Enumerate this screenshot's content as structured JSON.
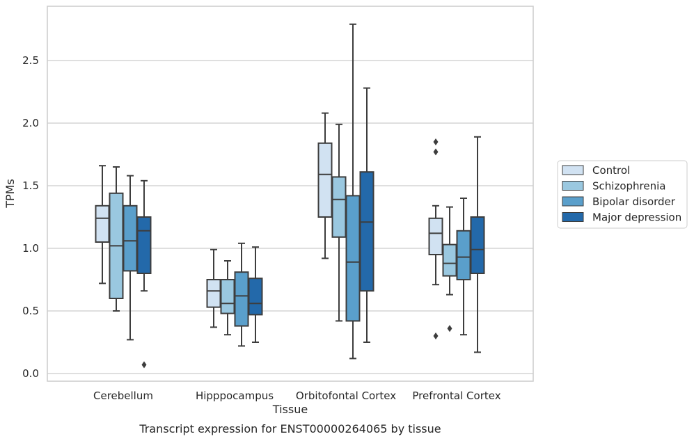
{
  "caption": "Transcript expression for ENST00000264065 by tissue",
  "chart_data": {
    "type": "box",
    "title": "",
    "xlabel": "Tissue",
    "ylabel": "TPMs",
    "ylim": [
      -0.05,
      2.88
    ],
    "yticks": [
      0.0,
      0.5,
      1.0,
      1.5,
      2.0,
      2.5
    ],
    "ytick_labels": [
      "0.0",
      "0.5",
      "1.0",
      "1.5",
      "2.0",
      "2.5"
    ],
    "grid": "horizontal",
    "legend_position": "right",
    "categories": [
      "Cerebellum",
      "Hipppocampus",
      "Orbitofontal Cortex",
      "Prefrontal Cortex"
    ],
    "series": [
      {
        "name": "Control",
        "color": "#d1e2f2",
        "boxes": [
          {
            "whislo": 0.72,
            "q1": 1.05,
            "med": 1.24,
            "q3": 1.34,
            "whishi": 1.66,
            "fliers": []
          },
          {
            "whislo": 0.37,
            "q1": 0.53,
            "med": 0.66,
            "q3": 0.75,
            "whishi": 0.99,
            "fliers": []
          },
          {
            "whislo": 0.92,
            "q1": 1.25,
            "med": 1.59,
            "q3": 1.84,
            "whishi": 2.08,
            "fliers": []
          },
          {
            "whislo": 0.71,
            "q1": 0.95,
            "med": 1.12,
            "q3": 1.24,
            "whishi": 1.34,
            "fliers": [
              1.85,
              1.77,
              0.3
            ]
          }
        ]
      },
      {
        "name": "Schizophrenia",
        "color": "#9ac8e0",
        "boxes": [
          {
            "whislo": 0.5,
            "q1": 0.6,
            "med": 1.02,
            "q3": 1.44,
            "whishi": 1.65,
            "fliers": []
          },
          {
            "whislo": 0.31,
            "q1": 0.48,
            "med": 0.56,
            "q3": 0.75,
            "whishi": 0.9,
            "fliers": []
          },
          {
            "whislo": 0.42,
            "q1": 1.09,
            "med": 1.39,
            "q3": 1.57,
            "whishi": 1.99,
            "fliers": []
          },
          {
            "whislo": 0.63,
            "q1": 0.78,
            "med": 0.88,
            "q3": 1.03,
            "whishi": 1.33,
            "fliers": [
              0.36
            ]
          }
        ]
      },
      {
        "name": "Bipolar disorder",
        "color": "#5a9fcb",
        "boxes": [
          {
            "whislo": 0.27,
            "q1": 0.82,
            "med": 1.06,
            "q3": 1.34,
            "whishi": 1.58,
            "fliers": []
          },
          {
            "whislo": 0.22,
            "q1": 0.38,
            "med": 0.62,
            "q3": 0.81,
            "whishi": 1.04,
            "fliers": []
          },
          {
            "whislo": 0.12,
            "q1": 0.42,
            "med": 0.89,
            "q3": 1.42,
            "whishi": 2.79,
            "fliers": []
          },
          {
            "whislo": 0.31,
            "q1": 0.75,
            "med": 0.93,
            "q3": 1.14,
            "whishi": 1.4,
            "fliers": []
          }
        ]
      },
      {
        "name": "Major depression",
        "color": "#2369aa",
        "boxes": [
          {
            "whislo": 0.66,
            "q1": 0.8,
            "med": 1.14,
            "q3": 1.25,
            "whishi": 1.54,
            "fliers": [
              0.07
            ]
          },
          {
            "whislo": 0.25,
            "q1": 0.47,
            "med": 0.56,
            "q3": 0.76,
            "whishi": 1.01,
            "fliers": []
          },
          {
            "whislo": 0.25,
            "q1": 0.66,
            "med": 1.21,
            "q3": 1.61,
            "whishi": 2.28,
            "fliers": []
          },
          {
            "whislo": 0.17,
            "q1": 0.8,
            "med": 0.99,
            "q3": 1.25,
            "whishi": 1.89,
            "fliers": []
          }
        ]
      }
    ],
    "colors": {
      "grid": "#cccccc",
      "frame": "#cccccc",
      "line": "#3d3d3d"
    }
  }
}
